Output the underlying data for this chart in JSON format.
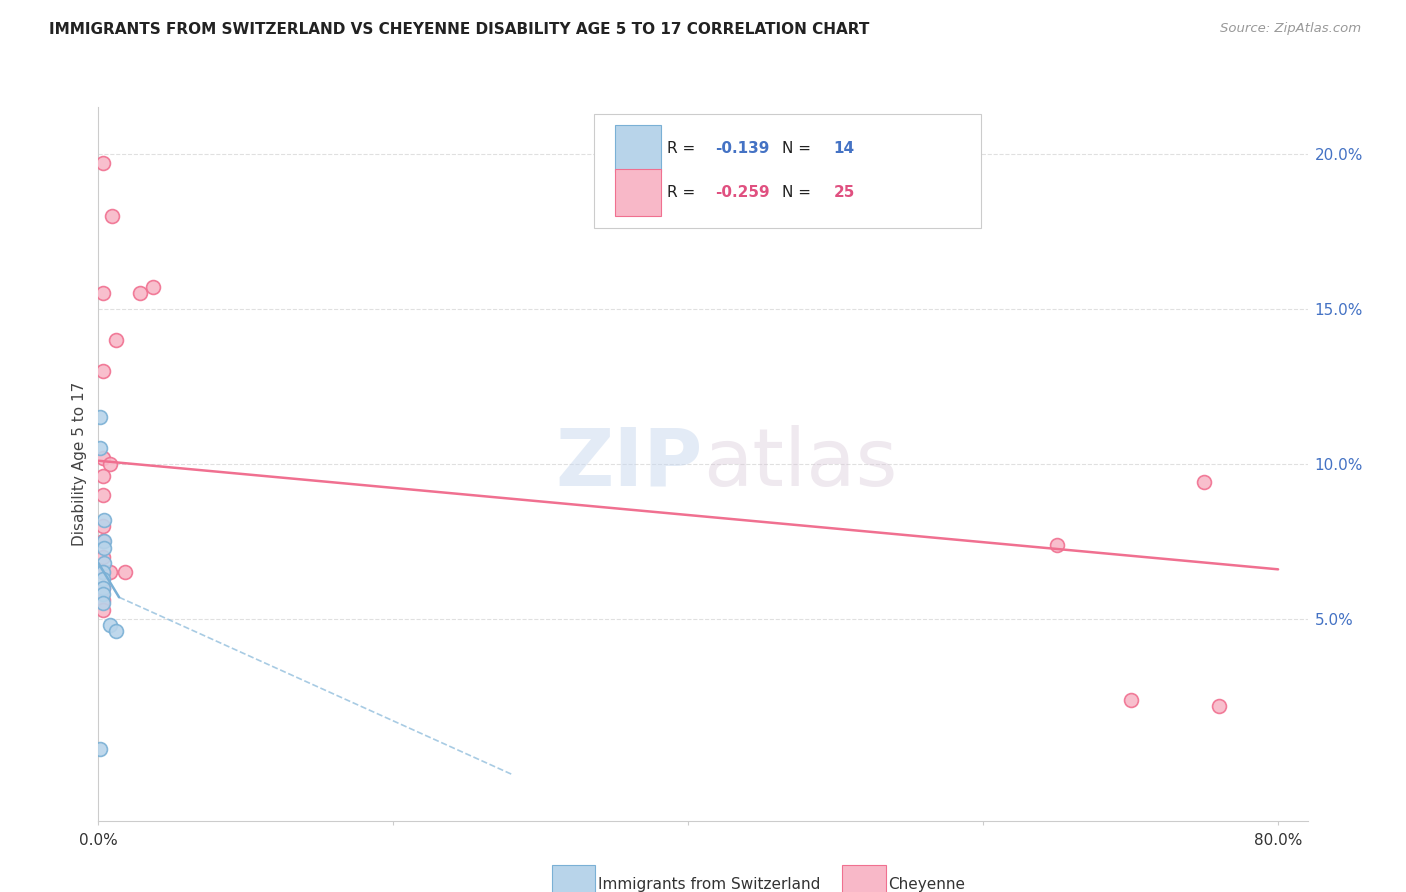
{
  "title": "IMMIGRANTS FROM SWITZERLAND VS CHEYENNE DISABILITY AGE 5 TO 17 CORRELATION CHART",
  "source": "Source: ZipAtlas.com",
  "ylabel": "Disability Age 5 to 17",
  "right_yticks": [
    "5.0%",
    "10.0%",
    "15.0%",
    "20.0%"
  ],
  "right_ytick_vals": [
    0.05,
    0.1,
    0.15,
    0.2
  ],
  "watermark": "ZIPatlas",
  "legend_r1": "R = ",
  "legend_r1_val": "-0.139",
  "legend_n1": "   N = ",
  "legend_n1_val": "14",
  "legend_r2": "R = ",
  "legend_r2_val": "-0.259",
  "legend_n2": "   N = ",
  "legend_n2_val": "25",
  "legend_bottom_label1": "Immigrants from Switzerland",
  "legend_bottom_label2": "Cheyenne",
  "switzerland_points": [
    [
      0.001,
      0.115
    ],
    [
      0.001,
      0.105
    ],
    [
      0.004,
      0.082
    ],
    [
      0.004,
      0.075
    ],
    [
      0.004,
      0.073
    ],
    [
      0.004,
      0.068
    ],
    [
      0.003,
      0.065
    ],
    [
      0.003,
      0.063
    ],
    [
      0.003,
      0.06
    ],
    [
      0.003,
      0.058
    ],
    [
      0.003,
      0.055
    ],
    [
      0.008,
      0.048
    ],
    [
      0.012,
      0.046
    ],
    [
      0.001,
      0.008
    ]
  ],
  "cheyenne_points": [
    [
      0.003,
      0.197
    ],
    [
      0.009,
      0.18
    ],
    [
      0.003,
      0.155
    ],
    [
      0.012,
      0.14
    ],
    [
      0.028,
      0.155
    ],
    [
      0.037,
      0.157
    ],
    [
      0.003,
      0.13
    ],
    [
      0.003,
      0.102
    ],
    [
      0.008,
      0.1
    ],
    [
      0.003,
      0.096
    ],
    [
      0.003,
      0.09
    ],
    [
      0.003,
      0.08
    ],
    [
      0.003,
      0.075
    ],
    [
      0.003,
      0.07
    ],
    [
      0.003,
      0.065
    ],
    [
      0.003,
      0.065
    ],
    [
      0.008,
      0.065
    ],
    [
      0.018,
      0.065
    ],
    [
      0.003,
      0.06
    ],
    [
      0.003,
      0.056
    ],
    [
      0.003,
      0.053
    ],
    [
      0.75,
      0.094
    ],
    [
      0.65,
      0.074
    ],
    [
      0.7,
      0.024
    ],
    [
      0.76,
      0.022
    ]
  ],
  "switzerland_line_solid": {
    "x0": 0.0,
    "y0": 0.068,
    "x1": 0.014,
    "y1": 0.057
  },
  "switzerland_line_dash": {
    "x0": 0.014,
    "y0": 0.057,
    "x1": 0.28,
    "y1": 0.0
  },
  "cheyenne_line": {
    "x0": 0.0,
    "y0": 0.101,
    "x1": 0.8,
    "y1": 0.066
  },
  "xlim": [
    0.0,
    0.82
  ],
  "ylim": [
    -0.015,
    0.215
  ],
  "marker_size": 100,
  "switzerland_fill": "#b8d4ea",
  "switzerland_edge": "#7ab0d5",
  "cheyenne_fill": "#f8b8c8",
  "cheyenne_edge": "#f07090",
  "background_color": "#ffffff",
  "grid_color": "#e0e0e0",
  "blue_text": "#4472c4",
  "pink_text": "#e05080",
  "axis_color": "#cccccc",
  "tick_color": "#4472c4"
}
